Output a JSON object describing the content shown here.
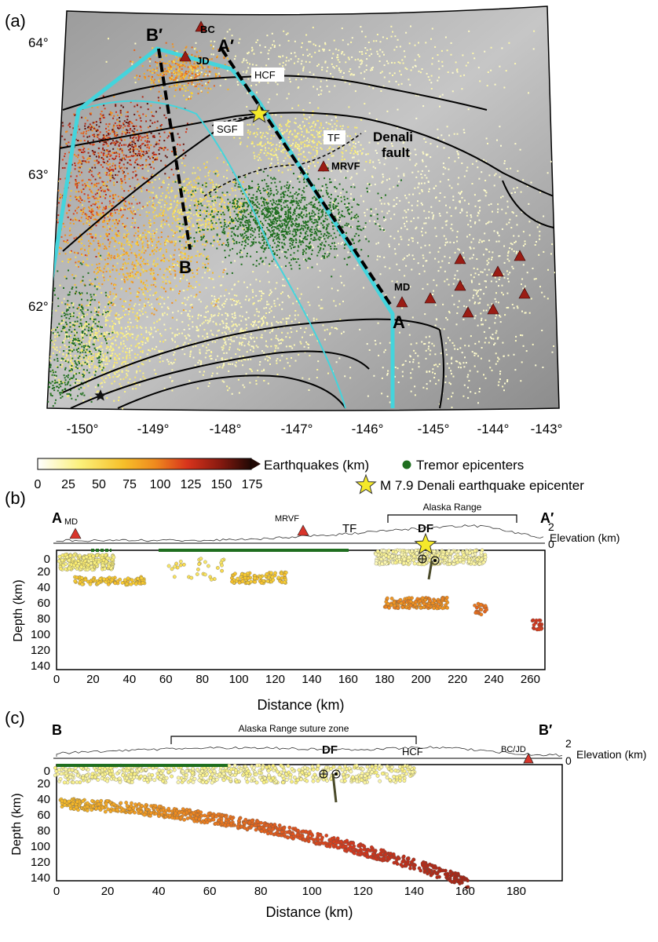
{
  "panels": {
    "a": "(a)",
    "b": "(b)",
    "c": "(c)"
  },
  "map": {
    "lat_labels": [
      "64°",
      "63°",
      "62°"
    ],
    "lon_labels": [
      "-150°",
      "-149°",
      "-148°",
      "-147°",
      "-146°",
      "-145°",
      "-144°",
      "-143°"
    ],
    "labels": {
      "b_prime": "B′",
      "a_prime": "A′",
      "bc": "BC",
      "jd": "JD",
      "hcf": "HCF",
      "sgf": "SGF",
      "tf": "TF",
      "denali1": "Denali",
      "denali2": "fault",
      "mrvf": "MRVF",
      "b": "B",
      "md": "MD",
      "a": "A"
    }
  },
  "legend": {
    "colorbar_label": "Earthquakes (km)",
    "ticks": [
      "0",
      "25",
      "50",
      "75",
      "100",
      "125",
      "150",
      "175"
    ],
    "tremor": "Tremor epicenters",
    "mainshock": "M 7.9 Denali earthquake epicenter",
    "colors": {
      "tremor": "#1f6e1f",
      "star": "#f5e92a"
    }
  },
  "section_b": {
    "start": "A",
    "end": "A′",
    "range_label": "Alaska Range",
    "md": "MD",
    "mrvf": "MRVF",
    "tf": "TF",
    "df": "DF",
    "elev_label": "Elevation (km)",
    "elev_ticks": [
      "2",
      "0"
    ],
    "ylabel": "Depth (km)",
    "xlabel": "Distance (km)",
    "yticks": [
      "0",
      "20",
      "40",
      "60",
      "80",
      "100",
      "120",
      "140"
    ],
    "xticks": [
      "0",
      "20",
      "40",
      "60",
      "80",
      "100",
      "120",
      "140",
      "160",
      "180",
      "200",
      "220",
      "240",
      "260"
    ]
  },
  "section_c": {
    "start": "B",
    "end": "B′",
    "range_label": "Alaska Range suture zone",
    "df": "DF",
    "hcf": "HCF",
    "bcjd": "BC/JD",
    "elev_label": "Elevation (km)",
    "elev_ticks": [
      "2",
      "0"
    ],
    "ylabel": "Depth (km)",
    "xlabel": "Distance (km)",
    "yticks": [
      "0",
      "20",
      "40",
      "60",
      "80",
      "100",
      "120",
      "140"
    ],
    "xticks": [
      "0",
      "20",
      "40",
      "60",
      "80",
      "100",
      "120",
      "140",
      "160",
      "180"
    ]
  }
}
